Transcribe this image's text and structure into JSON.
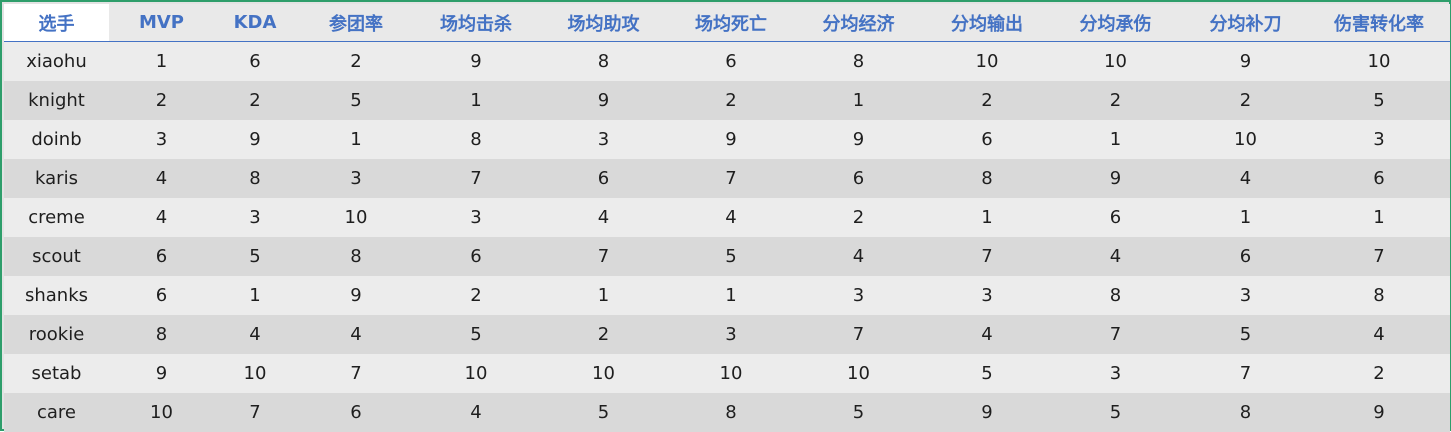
{
  "table": {
    "headers": [
      "选手",
      "MVP",
      "KDA",
      "参团率",
      "场均击杀",
      "场均助攻",
      "场均死亡",
      "分均经济",
      "分均输出",
      "分均承伤",
      "分均补刀",
      "伤害转化率"
    ],
    "rows": [
      [
        "xiaohu",
        "1",
        "6",
        "2",
        "9",
        "8",
        "6",
        "8",
        "10",
        "10",
        "9",
        "10"
      ],
      [
        "knight",
        "2",
        "2",
        "5",
        "1",
        "9",
        "2",
        "1",
        "2",
        "2",
        "2",
        "5"
      ],
      [
        "doinb",
        "3",
        "9",
        "1",
        "8",
        "3",
        "9",
        "9",
        "6",
        "1",
        "10",
        "3"
      ],
      [
        "karis",
        "4",
        "8",
        "3",
        "7",
        "6",
        "7",
        "6",
        "8",
        "9",
        "4",
        "6"
      ],
      [
        "creme",
        "4",
        "3",
        "10",
        "3",
        "4",
        "4",
        "2",
        "1",
        "6",
        "1",
        "1"
      ],
      [
        "scout",
        "6",
        "5",
        "8",
        "6",
        "7",
        "5",
        "4",
        "7",
        "4",
        "6",
        "7"
      ],
      [
        "shanks",
        "6",
        "1",
        "9",
        "2",
        "1",
        "1",
        "3",
        "3",
        "8",
        "3",
        "8"
      ],
      [
        "rookie",
        "8",
        "4",
        "4",
        "5",
        "2",
        "3",
        "7",
        "4",
        "7",
        "5",
        "4"
      ],
      [
        "setab",
        "9",
        "10",
        "7",
        "10",
        "10",
        "10",
        "10",
        "5",
        "3",
        "7",
        "2"
      ],
      [
        "care",
        "10",
        "7",
        "6",
        "4",
        "5",
        "8",
        "5",
        "9",
        "5",
        "8",
        "9"
      ]
    ]
  },
  "colors": {
    "header_text": "#4472c4",
    "border": "#2e9e6b",
    "row_light": "#ececec",
    "row_dark": "#d9d9d9"
  }
}
